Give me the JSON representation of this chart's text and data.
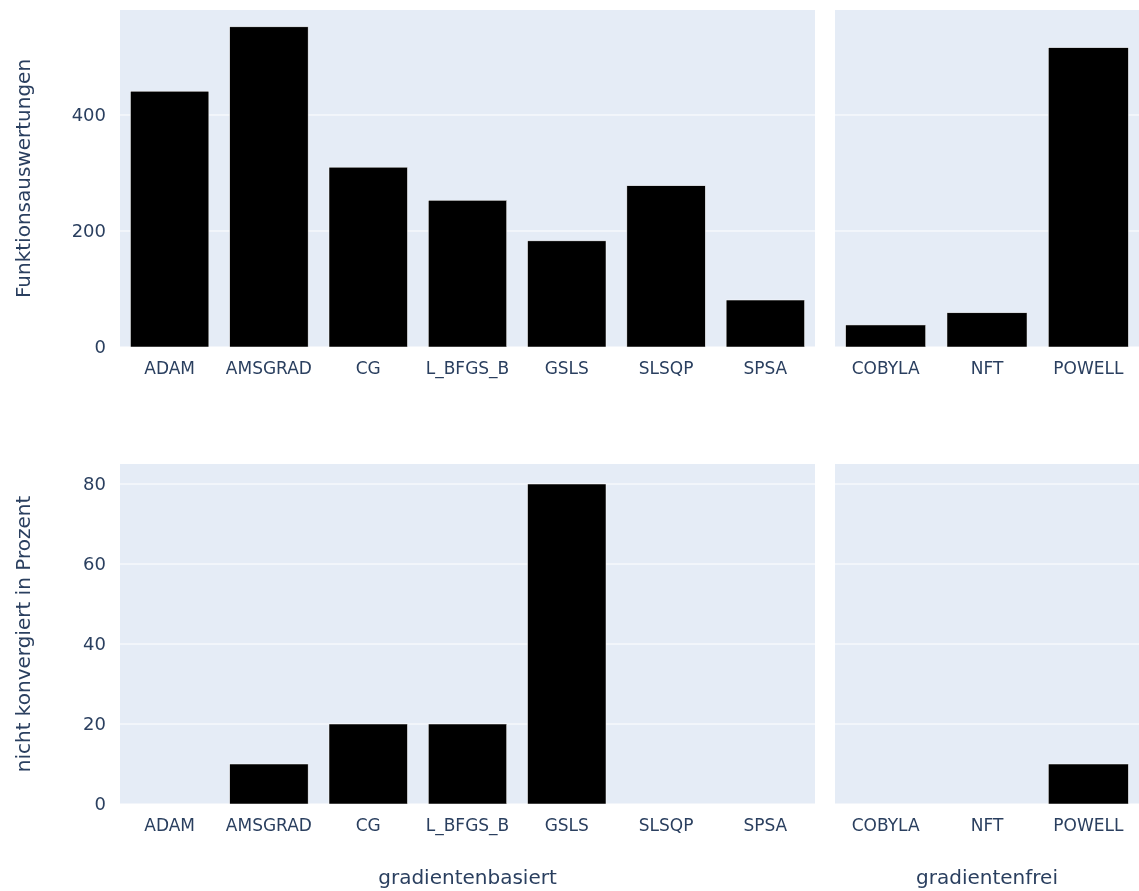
{
  "chart_data": [
    {
      "type": "bar",
      "ylabel": "Funktionsauswertungen",
      "categories": [
        "ADAM",
        "AMSGRAD",
        "CG",
        "L_BFGS_B",
        "GSLS",
        "SLSQP",
        "SPSA"
      ],
      "values": [
        441,
        552,
        310,
        253,
        183,
        278,
        81
      ],
      "color": "#000000",
      "ylim": [
        0,
        581
      ],
      "yticks": [
        0,
        200,
        400
      ],
      "grid": "y"
    },
    {
      "type": "bar",
      "categories": [
        "COBYLA",
        "NFT",
        "POWELL"
      ],
      "values": [
        38,
        59,
        516
      ],
      "color": "#000000",
      "ylim": [
        0,
        581
      ],
      "yticks": [
        0,
        200,
        400
      ],
      "grid": "y",
      "tick_labels": "x"
    },
    {
      "type": "bar",
      "ylabel": "nicht konvergiert in Prozent",
      "xlabel": "gradientenbasiert",
      "categories": [
        "ADAM",
        "AMSGRAD",
        "CG",
        "L_BFGS_B",
        "GSLS",
        "SLSQP",
        "SPSA"
      ],
      "values": [
        0,
        10,
        20,
        20,
        80,
        0,
        0
      ],
      "color": "#000000",
      "ylim": [
        0,
        85
      ],
      "yticks": [
        0,
        20,
        40,
        60,
        80
      ],
      "grid": "y"
    },
    {
      "type": "bar",
      "xlabel": "gradientenfrei",
      "categories": [
        "COBYLA",
        "NFT",
        "POWELL"
      ],
      "values": [
        0,
        0,
        10
      ],
      "color": "#000000",
      "ylim": [
        0,
        85
      ],
      "yticks": [
        0,
        20,
        40,
        60,
        80
      ],
      "grid": "y",
      "tick_labels": "x"
    }
  ]
}
